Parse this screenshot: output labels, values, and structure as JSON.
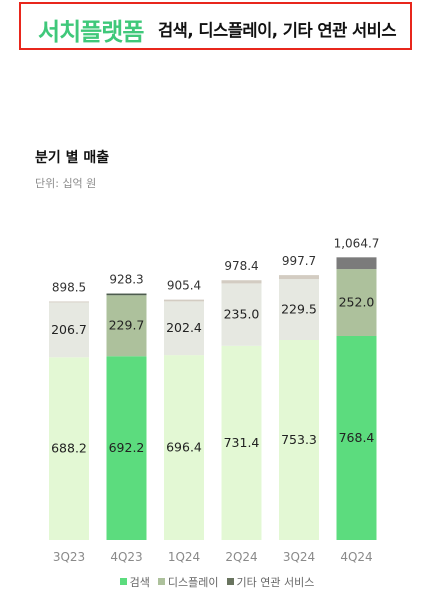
{
  "header": {
    "accent_title": "서치플랫폼",
    "rest_title": "검색, 디스플레이, 기타 연관 서비스"
  },
  "chart_data": {
    "type": "bar",
    "stacked": true,
    "title": "분기 별 매출",
    "subtitle": "단위: 십억 원",
    "categories": [
      "3Q23",
      "4Q23",
      "1Q24",
      "2Q24",
      "3Q24",
      "4Q24"
    ],
    "series": [
      {
        "name": "검색",
        "values": [
          688.2,
          692.2,
          696.4,
          731.4,
          753.3,
          768.4
        ]
      },
      {
        "name": "디스플레이",
        "values": [
          206.7,
          229.7,
          202.4,
          235.0,
          229.5,
          252.0
        ]
      },
      {
        "name": "기타 연관 서비스",
        "values": [
          3.6,
          6.4,
          6.6,
          12.0,
          14.9,
          44.3
        ]
      }
    ],
    "totals": [
      "898.5",
      "928.3",
      "905.4",
      "978.4",
      "997.7",
      "1,064.7"
    ],
    "value_labels": {
      "검색": [
        "688.2",
        "692.2",
        "696.4",
        "731.4",
        "753.3",
        "768.4"
      ],
      "디스플레이": [
        "206.7",
        "229.7",
        "202.4",
        "235.0",
        "229.5",
        "252.0"
      ]
    },
    "highlighted_categories": [
      "4Q23",
      "4Q24"
    ],
    "colors": {
      "search_light": "#e3f8d4",
      "search_highlight": "#5cdc7e",
      "display_light": "#e6e8e1",
      "display_highlight": "#adc19c",
      "other_light": "#d3ccc2",
      "other_highlight": "#7b7b7b",
      "other_4Q23": "#4d5c4e"
    },
    "legend": [
      {
        "label": "검색",
        "color": "#5cdc7e"
      },
      {
        "label": "디스플레이",
        "color": "#adc19c"
      },
      {
        "label": "기타 연관 서비스",
        "color": "#69745f"
      }
    ],
    "legend_position": "bottom",
    "ylim": [
      0,
      1100
    ],
    "grid": false
  }
}
